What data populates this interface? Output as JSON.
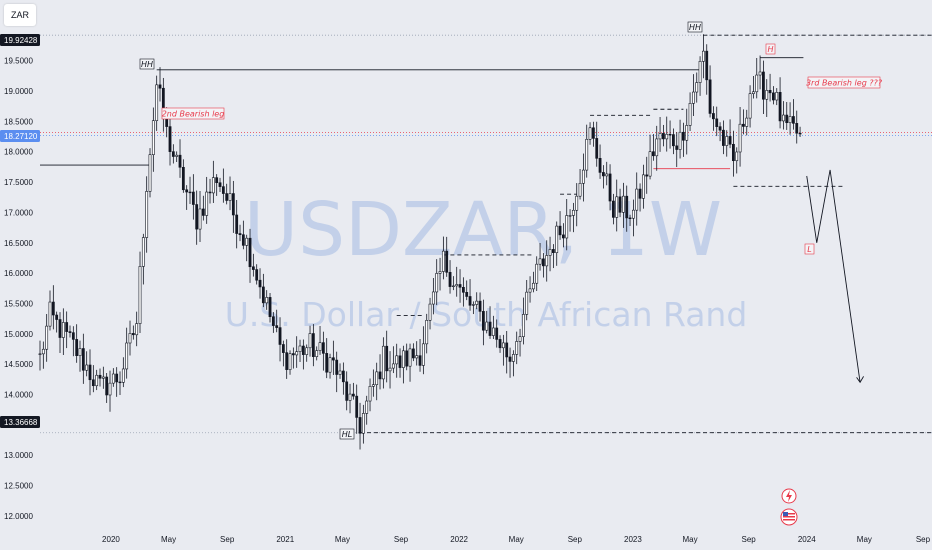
{
  "symbol": "ZAR",
  "watermark": {
    "ticker": "USDZAR, 1W",
    "description": "U.S. Dollar / South African Rand"
  },
  "colors": {
    "background": "#e9ebf1",
    "candle": "#131722",
    "price_tag": "#131722",
    "current_tag": "#5b8ef0",
    "annotation_red": "#e8394a",
    "dotted_level": "#9aa3b3"
  },
  "price_tags": {
    "high": "19.92428",
    "current": "18.27120",
    "low": "13.36668"
  },
  "chart_data": {
    "type": "candlestick",
    "timeframe": "1W",
    "x_range": [
      "2019-08-05",
      "2024-09-20"
    ],
    "y_range": [
      11.8,
      20.5
    ],
    "x_ticks": [
      "2020",
      "May",
      "Sep",
      "2021",
      "May",
      "Sep",
      "2022",
      "May",
      "Sep",
      "2023",
      "May",
      "Sep",
      "2024",
      "May",
      "Sep"
    ],
    "y_ticks": [
      "12.0000",
      "12.5000",
      "13.0000",
      "13.5000",
      "14.0000",
      "14.5000",
      "15.0000",
      "15.5000",
      "16.0000",
      "16.5000",
      "17.0000",
      "17.5000",
      "18.0000",
      "18.5000",
      "19.0000",
      "19.5000"
    ],
    "levels": {
      "hh_2020": 19.35,
      "hh_2023": 19.92,
      "last_close": 18.27,
      "low_2021": 13.37,
      "prior_high_2019": 17.78,
      "support_2023": 17.43,
      "red_level_2023": 17.72
    },
    "anchors": [
      {
        "date": "2019-08-05",
        "price": 14.6
      },
      {
        "date": "2019-08-26",
        "price": 15.3
      },
      {
        "date": "2019-10-14",
        "price": 14.8
      },
      {
        "date": "2019-12-09",
        "price": 14.1
      },
      {
        "date": "2020-01-20",
        "price": 14.3
      },
      {
        "date": "2020-02-24",
        "price": 15.2
      },
      {
        "date": "2020-03-16",
        "price": 17.5
      },
      {
        "date": "2020-04-06",
        "price": 19.1
      },
      {
        "date": "2020-04-27",
        "price": 18.3
      },
      {
        "date": "2020-05-25",
        "price": 17.6
      },
      {
        "date": "2020-06-29",
        "price": 16.9
      },
      {
        "date": "2020-08-10",
        "price": 17.6
      },
      {
        "date": "2020-10-12",
        "price": 16.5
      },
      {
        "date": "2020-12-28",
        "price": 14.6
      },
      {
        "date": "2021-02-22",
        "price": 14.8
      },
      {
        "date": "2021-04-12",
        "price": 14.5
      },
      {
        "date": "2021-06-07",
        "price": 13.5
      },
      {
        "date": "2021-07-26",
        "price": 14.6
      },
      {
        "date": "2021-08-23",
        "price": 14.5
      },
      {
        "date": "2021-10-11",
        "price": 14.7
      },
      {
        "date": "2021-11-29",
        "price": 16.2
      },
      {
        "date": "2022-01-10",
        "price": 15.6
      },
      {
        "date": "2022-03-07",
        "price": 15.1
      },
      {
        "date": "2022-04-18",
        "price": 14.6
      },
      {
        "date": "2022-06-13",
        "price": 16.0
      },
      {
        "date": "2022-08-22",
        "price": 17.0
      },
      {
        "date": "2022-10-03",
        "price": 18.3
      },
      {
        "date": "2022-11-21",
        "price": 17.1
      },
      {
        "date": "2023-01-02",
        "price": 17.0
      },
      {
        "date": "2023-02-20",
        "price": 18.2
      },
      {
        "date": "2023-04-10",
        "price": 18.2
      },
      {
        "date": "2023-05-29",
        "price": 19.6
      },
      {
        "date": "2023-06-12",
        "price": 18.7
      },
      {
        "date": "2023-07-31",
        "price": 17.8
      },
      {
        "date": "2023-09-04",
        "price": 19.0
      },
      {
        "date": "2023-09-25",
        "price": 19.1
      },
      {
        "date": "2023-10-23",
        "price": 19.0
      },
      {
        "date": "2023-11-13",
        "price": 18.4
      },
      {
        "date": "2023-12-18",
        "price": 18.3
      }
    ],
    "projection": [
      {
        "date": "2024-01-01",
        "price": 17.6
      },
      {
        "date": "2024-01-22",
        "price": 16.5
      },
      {
        "date": "2024-02-19",
        "price": 17.7
      },
      {
        "date": "2024-04-22",
        "price": 14.2
      }
    ]
  },
  "annotations": {
    "hh_2020": "HH",
    "hh_2023": "HH",
    "hl": "HL",
    "h": "H",
    "l": "L",
    "bearish_leg_2": "2nd Bearish leg",
    "bearish_leg_3": "3rd Bearish leg ???"
  }
}
